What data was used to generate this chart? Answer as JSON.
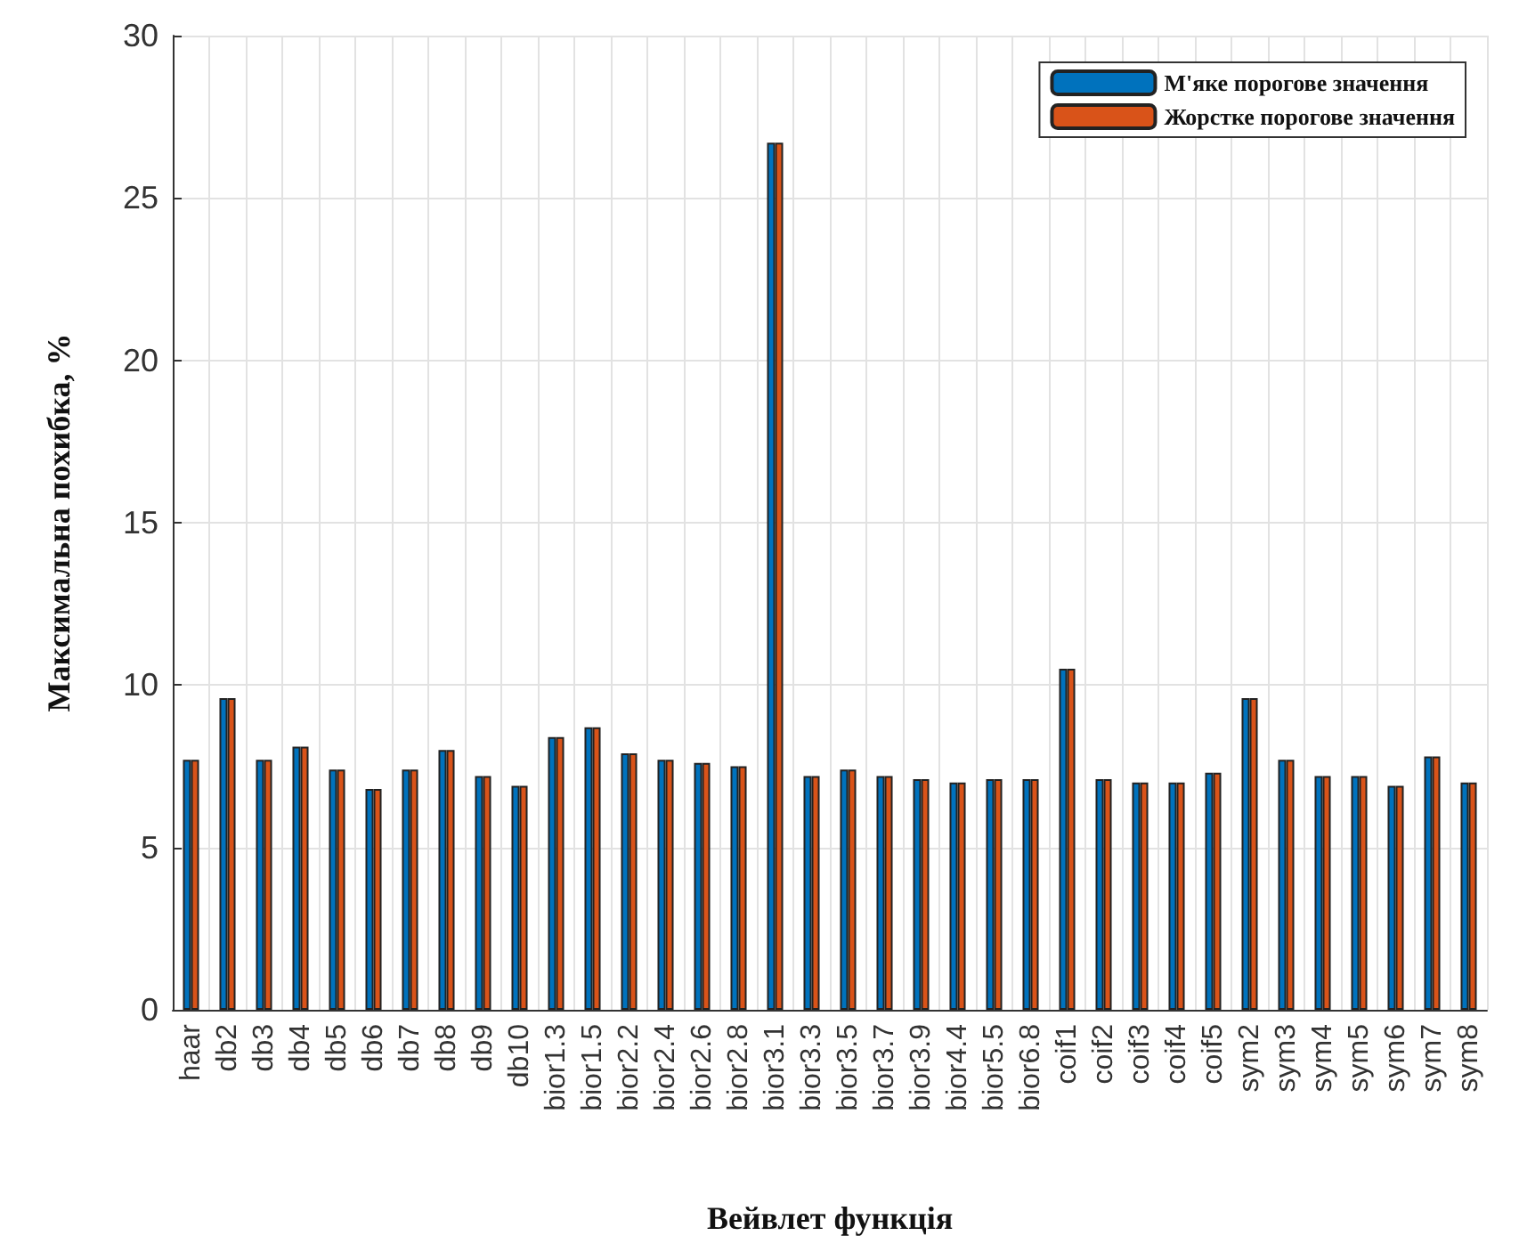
{
  "chart_data": {
    "type": "bar",
    "xlabel": "Вейвлет функція",
    "ylabel": "Максимальна похибка, %",
    "categories": [
      "haar",
      "db2",
      "db3",
      "db4",
      "db5",
      "db6",
      "db7",
      "db8",
      "db9",
      "db10",
      "bior1.3",
      "bior1.5",
      "bior2.2",
      "bior2.4",
      "bior2.6",
      "bior2.8",
      "bior3.1",
      "bior3.3",
      "bior3.5",
      "bior3.7",
      "bior3.9",
      "bior4.4",
      "bior5.5",
      "bior6.8",
      "coif1",
      "coif2",
      "coif3",
      "coif4",
      "coif5",
      "sym2",
      "sym3",
      "sym4",
      "sym5",
      "sym6",
      "sym7",
      "sym8"
    ],
    "series": [
      {
        "name": "М'яке порогове значення",
        "color": "#0072bd",
        "values": [
          7.7,
          9.6,
          7.7,
          8.1,
          7.4,
          6.8,
          7.4,
          8.0,
          7.2,
          6.9,
          8.4,
          8.7,
          7.9,
          7.7,
          7.6,
          7.5,
          26.7,
          7.2,
          7.4,
          7.2,
          7.1,
          7.0,
          7.1,
          7.1,
          10.5,
          7.1,
          7.0,
          7.0,
          7.3,
          9.6,
          7.7,
          7.2,
          7.2,
          6.9,
          7.8,
          7.0
        ]
      },
      {
        "name": "Жорстке порогове значення",
        "color": "#d95319",
        "values": [
          7.7,
          9.6,
          7.7,
          8.1,
          7.4,
          6.8,
          7.4,
          8.0,
          7.2,
          6.9,
          8.4,
          8.7,
          7.9,
          7.7,
          7.6,
          7.5,
          26.7,
          7.2,
          7.4,
          7.2,
          7.1,
          7.0,
          7.1,
          7.1,
          10.5,
          7.1,
          7.0,
          7.0,
          7.3,
          9.6,
          7.7,
          7.2,
          7.2,
          6.9,
          7.8,
          7.0
        ]
      }
    ],
    "ylim": [
      0,
      30
    ],
    "yticks": [
      0,
      5,
      10,
      15,
      20,
      25,
      30
    ],
    "grid": true,
    "legend": "top right"
  }
}
